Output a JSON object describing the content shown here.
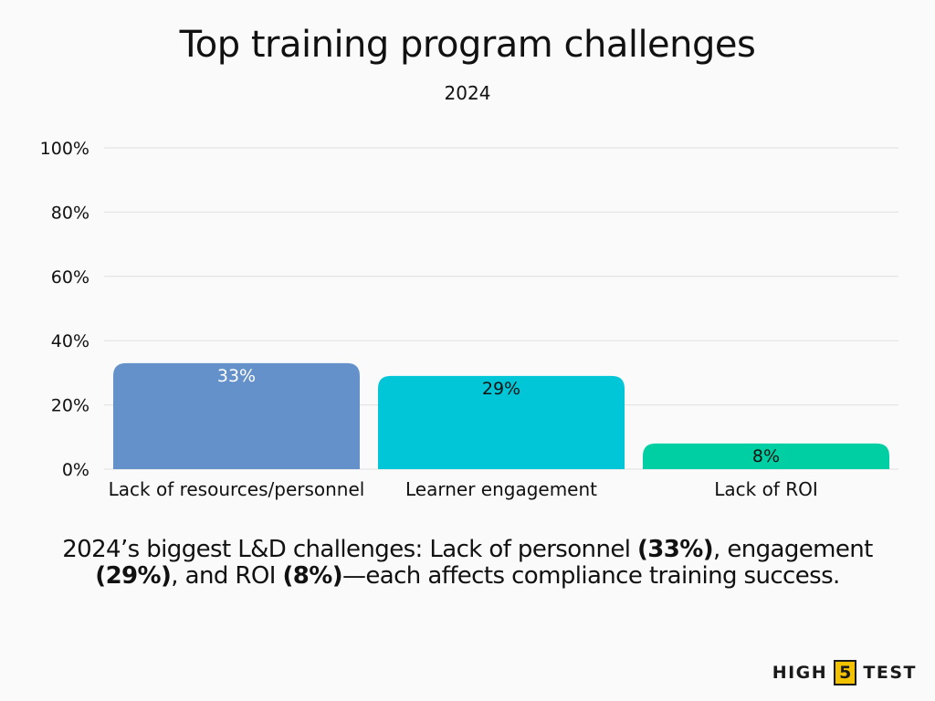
{
  "colors": {
    "bar_1": "#6491c9",
    "bar_2": "#00c6d8",
    "bar_3": "#00cfa3",
    "grid": "#e0e0e0",
    "text": "#111111",
    "logo_accent": "#f2c200"
  },
  "caption": {
    "p1": "2024’s biggest L&D challenges: Lack of personnel ",
    "b1": "(33%)",
    "p2": ", engagement ",
    "b2": "(29%)",
    "p3": ", and ROI ",
    "b3": "(8%)",
    "p4": "—each affects compliance training success."
  },
  "logo": {
    "left": "HIGH",
    "middle": "5",
    "right": "TEST"
  },
  "chart_data": {
    "type": "bar",
    "title": "Top training program challenges",
    "subtitle": "2024",
    "categories": [
      "Lack of resources/personnel",
      "Learner engagement",
      "Lack of ROI"
    ],
    "values": [
      33,
      29,
      8
    ],
    "data_labels": [
      "33%",
      "29%",
      "8%"
    ],
    "label_colors": [
      "#ffffff",
      "#111111",
      "#111111"
    ],
    "y_ticks": [
      "0%",
      "20%",
      "40%",
      "60%",
      "80%",
      "100%"
    ],
    "y_tick_values": [
      0,
      20,
      40,
      60,
      80,
      100
    ],
    "ylim": [
      0,
      100
    ],
    "xlabel": "",
    "ylabel": "",
    "grid": true,
    "legend": "none"
  }
}
